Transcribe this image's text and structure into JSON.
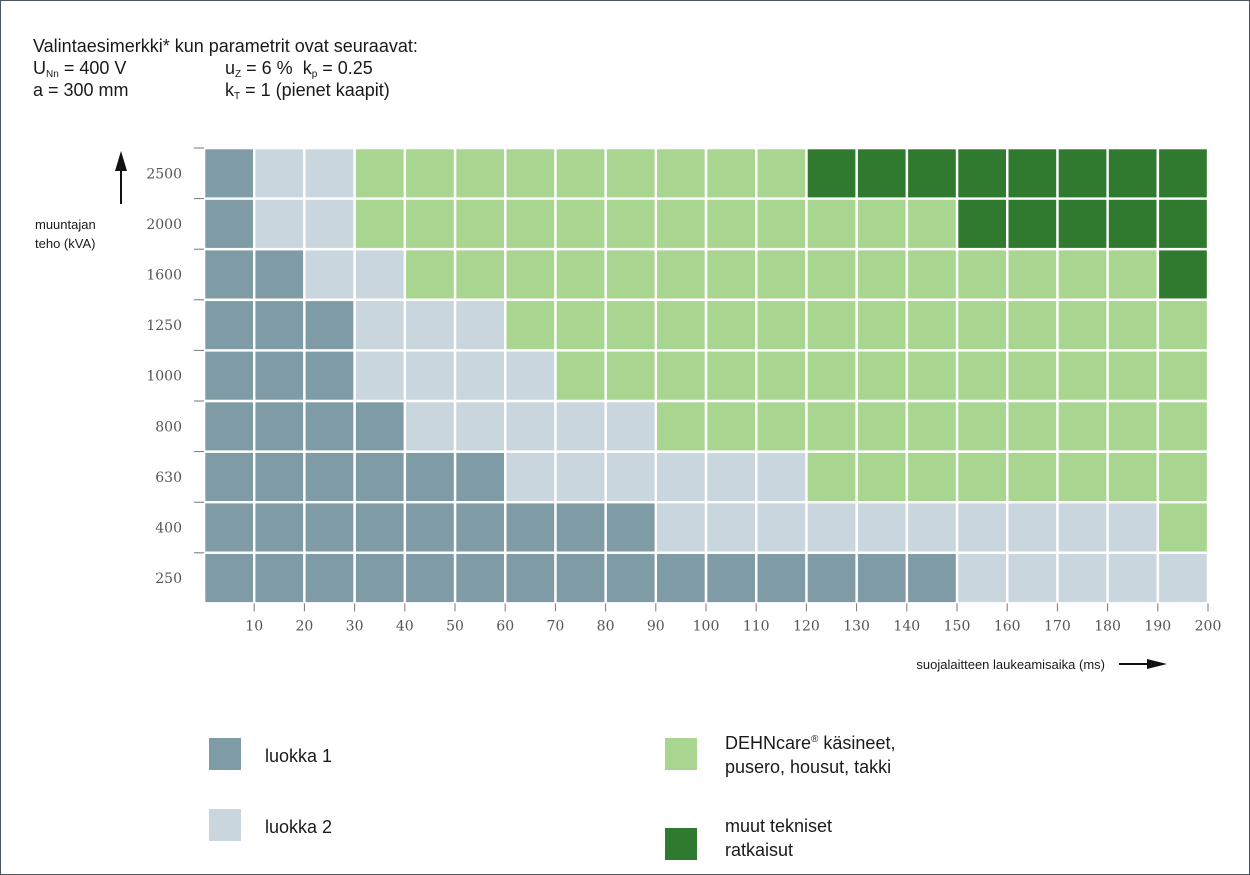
{
  "params": {
    "heading": "Valintaesimerkki* kun parametrit ovat seuraavat:",
    "line1": {
      "u": "U",
      "u_sub": "Nn",
      "u_val": "= 400 V",
      "uz": "u",
      "uz_sub": "Z",
      "uz_val": "= 6 %",
      "kp": "k",
      "kp_sub": "p",
      "kp_val": "= 0.25"
    },
    "line2": {
      "a": "a = 300 mm",
      "kt": "k",
      "kt_sub": "T",
      "kt_val": "= 1 (pienet kaapit)"
    }
  },
  "chart_data": {
    "type": "heatmap",
    "ylabel": "muuntajan teho (kVA)",
    "xlabel": "suojalaitteen laukeamisaika (ms)",
    "y_categories": [
      "2500",
      "2000",
      "1600",
      "1250",
      "1000",
      "800",
      "630",
      "400",
      "250"
    ],
    "x_ticks": [
      "10",
      "20",
      "30",
      "40",
      "50",
      "60",
      "70",
      "80",
      "90",
      "100",
      "110",
      "120",
      "130",
      "140",
      "150",
      "160",
      "170",
      "180",
      "190",
      "200"
    ],
    "class_colors": {
      "1": "#7f9ba6",
      "2": "#c9d6dd",
      "3": "#a8d58f",
      "4": "#2f7a2e"
    },
    "cell_classes": [
      [
        1,
        2,
        2,
        3,
        3,
        3,
        3,
        3,
        3,
        3,
        3,
        3,
        4,
        4,
        4,
        4,
        4,
        4,
        4,
        4
      ],
      [
        1,
        2,
        2,
        3,
        3,
        3,
        3,
        3,
        3,
        3,
        3,
        3,
        3,
        3,
        3,
        4,
        4,
        4,
        4,
        4
      ],
      [
        1,
        1,
        2,
        2,
        3,
        3,
        3,
        3,
        3,
        3,
        3,
        3,
        3,
        3,
        3,
        3,
        3,
        3,
        3,
        4
      ],
      [
        1,
        1,
        1,
        2,
        2,
        2,
        3,
        3,
        3,
        3,
        3,
        3,
        3,
        3,
        3,
        3,
        3,
        3,
        3,
        3
      ],
      [
        1,
        1,
        1,
        2,
        2,
        2,
        2,
        3,
        3,
        3,
        3,
        3,
        3,
        3,
        3,
        3,
        3,
        3,
        3,
        3
      ],
      [
        1,
        1,
        1,
        1,
        2,
        2,
        2,
        2,
        2,
        3,
        3,
        3,
        3,
        3,
        3,
        3,
        3,
        3,
        3,
        3
      ],
      [
        1,
        1,
        1,
        1,
        1,
        1,
        2,
        2,
        2,
        2,
        2,
        2,
        3,
        3,
        3,
        3,
        3,
        3,
        3,
        3
      ],
      [
        1,
        1,
        1,
        1,
        1,
        1,
        1,
        1,
        1,
        2,
        2,
        2,
        2,
        2,
        2,
        2,
        2,
        2,
        2,
        3
      ],
      [
        1,
        1,
        1,
        1,
        1,
        1,
        1,
        1,
        1,
        1,
        1,
        1,
        1,
        1,
        1,
        2,
        2,
        2,
        2,
        2
      ]
    ]
  },
  "legend": [
    {
      "class": "1",
      "label": "luokka  1"
    },
    {
      "class": "2",
      "label": "luokka  2"
    },
    {
      "class": "3",
      "label_line1": "DEHNcare",
      "label_reg": "®",
      "label_line1_rest": " käsineet,",
      "label_line2": "pusero, housut, takki"
    },
    {
      "class": "4",
      "label_line1": "muut tekniset",
      "label_line2": "ratkaisut"
    }
  ]
}
